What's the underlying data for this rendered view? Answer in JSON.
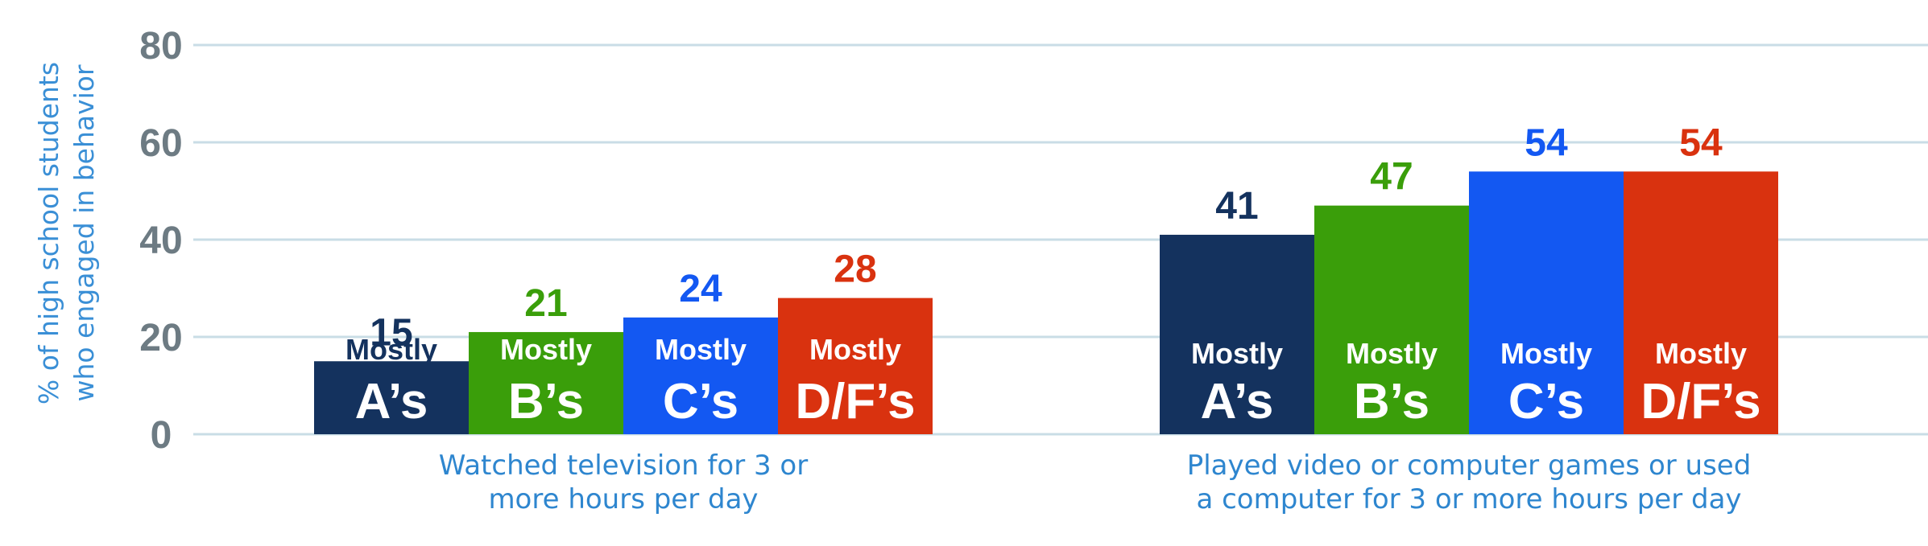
{
  "chart_data": {
    "type": "bar",
    "ylabel_lines": [
      "% of high school students",
      "who engaged in behavior"
    ],
    "ylim": [
      0,
      80
    ],
    "yticks": [
      "0",
      "20",
      "40",
      "60",
      "80"
    ],
    "grid": true,
    "groups": [
      {
        "label_lines": [
          "Watched television for 3 or",
          "more hours per day"
        ],
        "bars": [
          {
            "series": "Mostly A's",
            "value": 15,
            "label": "15",
            "line1": "Mostly",
            "line2": "A’s",
            "color": "#14325e"
          },
          {
            "series": "Mostly B's",
            "value": 21,
            "label": "21",
            "line1": "Mostly",
            "line2": "B’s",
            "color": "#3a9e0a"
          },
          {
            "series": "Mostly C's",
            "value": 24,
            "label": "24",
            "line1": "Mostly",
            "line2": "C’s",
            "color": "#1358f2"
          },
          {
            "series": "Mostly D/F's",
            "value": 28,
            "label": "28",
            "line1": "Mostly",
            "line2": "D/F’s",
            "color": "#d9320f"
          }
        ]
      },
      {
        "label_lines": [
          "Played video or computer games or used",
          "a computer for 3 or more hours per day"
        ],
        "bars": [
          {
            "series": "Mostly A's",
            "value": 41,
            "label": "41",
            "line1": "Mostly",
            "line2": "A’s",
            "color": "#14325e"
          },
          {
            "series": "Mostly B's",
            "value": 47,
            "label": "47",
            "line1": "Mostly",
            "line2": "B’s",
            "color": "#3a9e0a"
          },
          {
            "series": "Mostly C's",
            "value": 54,
            "label": "54",
            "line1": "Mostly",
            "line2": "C’s",
            "color": "#1358f2"
          },
          {
            "series": "Mostly D/F's",
            "value": 54,
            "label": "54",
            "line1": "Mostly",
            "line2": "D/F’s",
            "color": "#d9320f"
          }
        ]
      }
    ],
    "colors": {
      "tick_text": "#6d7b83",
      "gridline": "#c9dde6",
      "axis_label": "#3a8fd6",
      "category_label": "#2e86cf"
    }
  }
}
